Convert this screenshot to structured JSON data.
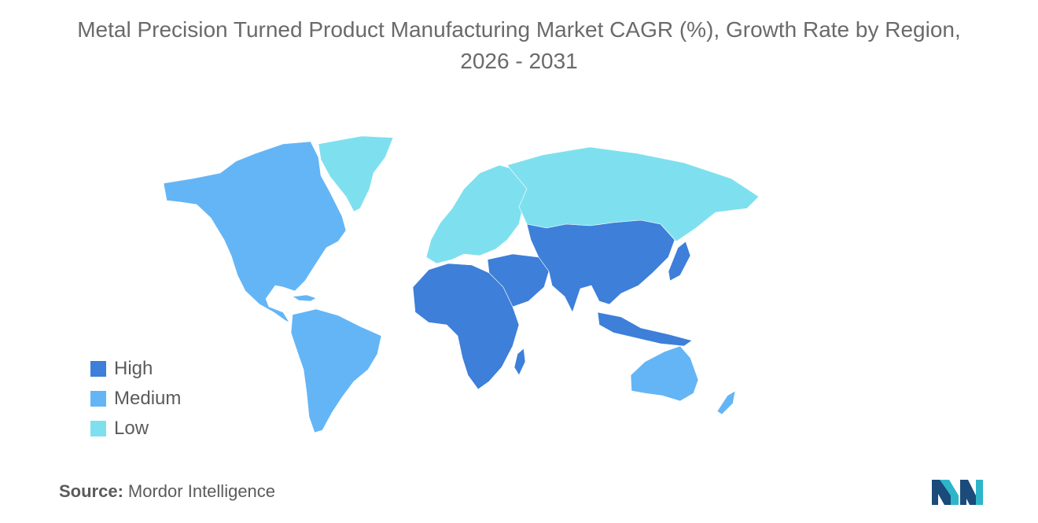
{
  "title": {
    "line1": "Metal Precision Turned Product Manufacturing Market CAGR (%), Growth Rate by Region,",
    "line2": "2026 - 2031"
  },
  "legend": [
    {
      "label": "High",
      "color": "#3d7fd9"
    },
    {
      "label": "Medium",
      "color": "#64b5f6"
    },
    {
      "label": "Low",
      "color": "#7ee0ef"
    }
  ],
  "colors": {
    "high": "#3d7fd9",
    "medium": "#64b5f6",
    "low": "#7ee0ef",
    "no_data": "#a9a9a9"
  },
  "regions": {
    "north_america": "medium",
    "south_america": "medium",
    "greenland": "low",
    "europe": "low",
    "russia": "low",
    "africa": "high",
    "middle_east": "high",
    "asia": "high",
    "australia": "medium",
    "new_zealand": "medium"
  },
  "source": {
    "label": "Source:",
    "value": "Mordor Intelligence"
  },
  "logo": {
    "icon": "mordor-intelligence-logo"
  }
}
